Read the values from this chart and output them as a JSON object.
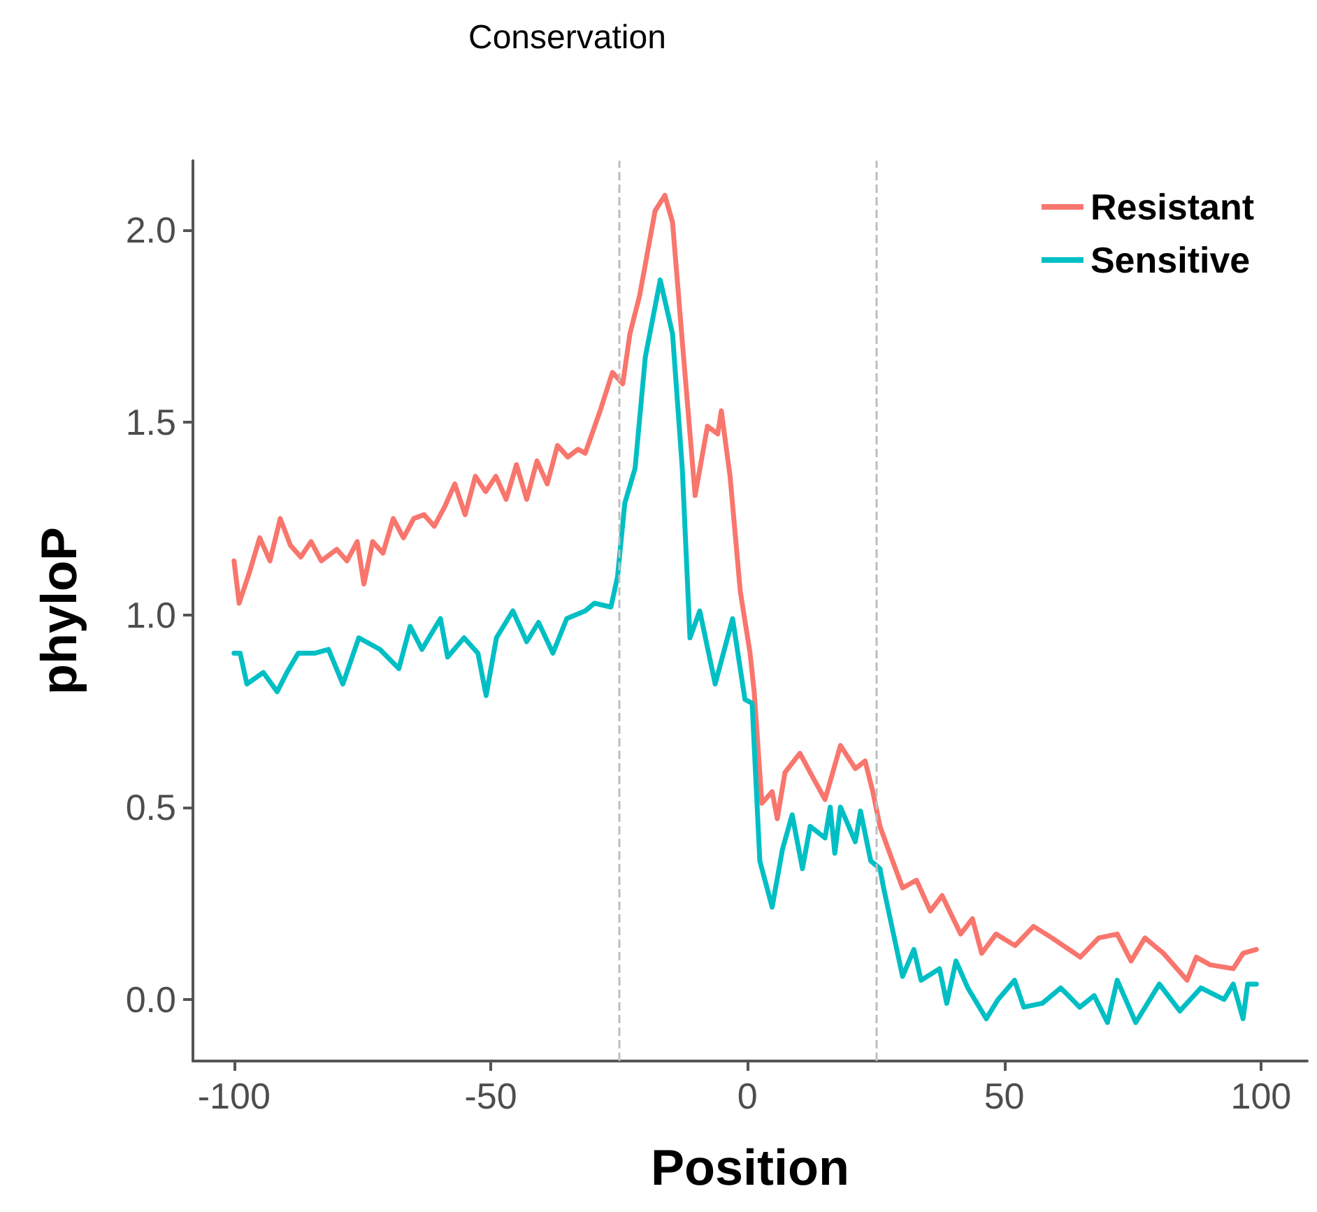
{
  "chart_data": {
    "type": "line",
    "title": "Conservation",
    "xlabel": "Position",
    "ylabel": "phyloP",
    "xlim": [
      -108,
      109
    ],
    "xticks": [
      -100,
      -50,
      0,
      50,
      100
    ],
    "ylim": [
      -0.16,
      2.18
    ],
    "yticks": [
      {
        "value": 0,
        "label": "0.0"
      },
      {
        "value": 0.5,
        "label": "0.5"
      },
      {
        "value": 1,
        "label": "1.0"
      },
      {
        "value": 1.5,
        "label": "1.5"
      },
      {
        "value": 2,
        "label": "2.0"
      }
    ],
    "grid": false,
    "legend": "top right",
    "line_style": "solid",
    "marker": "none",
    "ref_lines": [
      {
        "axis": "x",
        "value": -25,
        "color": "#bdbdbd",
        "line_style": "dashed"
      },
      {
        "axis": "x",
        "value": 25,
        "color": "#bdbdbd",
        "line_style": "dashed"
      }
    ],
    "series": [
      {
        "name": "Resistant",
        "color": "#f8766d",
        "x": [
          -100,
          -99,
          -97,
          -95,
          -93,
          -91,
          -89,
          -87,
          -85,
          -83,
          -80,
          -78,
          -76,
          -74.7,
          -73,
          -71,
          -69,
          -67,
          -65,
          -63,
          -61,
          -59,
          -57,
          -55,
          -53,
          -51,
          -49,
          -47,
          -45,
          -43,
          -41,
          -39,
          -37,
          -35,
          -33,
          -31.6,
          -28.7,
          -26.3,
          -24.3,
          -22.9,
          -21,
          -18,
          -16.1,
          -14.6,
          -12.7,
          -10.2,
          -7.8,
          -5.8,
          -5.1,
          -3.4,
          -1.4,
          0.5,
          1.3,
          2.8,
          4.8,
          5.8,
          7.3,
          10.2,
          12.2,
          15.1,
          18.1,
          21,
          22.9,
          24.4,
          25.8,
          27.7,
          30.2,
          32.9,
          35.6,
          37.9,
          41.5,
          43.8,
          45.6,
          48.4,
          52.1,
          55.7,
          59.3,
          64.8,
          68.4,
          72,
          74.7,
          77.4,
          81,
          85.6,
          87.4,
          90.1,
          94.6,
          96.5,
          99.1
        ],
        "values": [
          1.14,
          1.03,
          1.11,
          1.2,
          1.14,
          1.25,
          1.18,
          1.15,
          1.19,
          1.14,
          1.17,
          1.14,
          1.19,
          1.08,
          1.19,
          1.16,
          1.25,
          1.2,
          1.25,
          1.26,
          1.23,
          1.28,
          1.34,
          1.26,
          1.36,
          1.32,
          1.36,
          1.3,
          1.39,
          1.3,
          1.4,
          1.34,
          1.44,
          1.41,
          1.43,
          1.42,
          1.53,
          1.63,
          1.6,
          1.73,
          1.83,
          2.05,
          2.09,
          2.02,
          1.71,
          1.31,
          1.49,
          1.47,
          1.53,
          1.36,
          1.06,
          0.9,
          0.8,
          0.51,
          0.54,
          0.47,
          0.59,
          0.64,
          0.59,
          0.52,
          0.66,
          0.6,
          0.62,
          0.54,
          0.45,
          0.38,
          0.29,
          0.31,
          0.23,
          0.27,
          0.17,
          0.21,
          0.12,
          0.17,
          0.14,
          0.19,
          0.16,
          0.11,
          0.16,
          0.17,
          0.1,
          0.16,
          0.12,
          0.05,
          0.11,
          0.09,
          0.08,
          0.12,
          0.13
        ]
      },
      {
        "name": "Sensitive",
        "color": "#00bfc4",
        "x": [
          -100,
          -98.8,
          -97.5,
          -94.3,
          -91.6,
          -89.7,
          -87.5,
          -84.3,
          -81.6,
          -78.8,
          -75.7,
          -71.6,
          -67.9,
          -65.7,
          -63.4,
          -59.8,
          -58.4,
          -55.2,
          -52.5,
          -50.9,
          -48.9,
          -45.7,
          -43,
          -40.7,
          -37.9,
          -35.2,
          -31.6,
          -29.8,
          -26.6,
          -25.3,
          -23.9,
          -21.9,
          -19.9,
          -17,
          -14.6,
          -12.7,
          -11.2,
          -9.3,
          -6.3,
          -2.9,
          -0.5,
          0.9,
          2.4,
          4.8,
          6.8,
          8.7,
          10.7,
          12.2,
          15.1,
          16.1,
          17,
          18.1,
          21,
          22,
          24,
          25.8,
          26.5,
          30.2,
          32.4,
          33.8,
          37.4,
          38.8,
          40.6,
          42.9,
          46.5,
          48.8,
          52,
          53.8,
          57.4,
          61,
          64.7,
          67.5,
          70.1,
          72,
          75.6,
          80.2,
          84.2,
          88.3,
          92.8,
          94.6,
          96.5,
          97.4,
          99.1
        ],
        "values": [
          0.9,
          0.9,
          0.82,
          0.85,
          0.8,
          0.85,
          0.9,
          0.9,
          0.91,
          0.82,
          0.94,
          0.91,
          0.86,
          0.97,
          0.91,
          0.99,
          0.89,
          0.94,
          0.9,
          0.79,
          0.94,
          1.01,
          0.93,
          0.98,
          0.9,
          0.99,
          1.01,
          1.03,
          1.02,
          1.1,
          1.29,
          1.38,
          1.67,
          1.87,
          1.73,
          1.38,
          0.94,
          1.01,
          0.82,
          0.99,
          0.78,
          0.77,
          0.36,
          0.24,
          0.39,
          0.48,
          0.34,
          0.45,
          0.42,
          0.5,
          0.38,
          0.5,
          0.41,
          0.49,
          0.36,
          0.34,
          0.29,
          0.06,
          0.13,
          0.05,
          0.08,
          -0.01,
          0.1,
          0.03,
          -0.05,
          0,
          0.05,
          -0.02,
          -0.01,
          0.03,
          -0.02,
          0.01,
          -0.06,
          0.05,
          -0.06,
          0.04,
          -0.03,
          0.03,
          0,
          0.04,
          -0.05,
          0.04,
          0.04
        ]
      }
    ]
  }
}
